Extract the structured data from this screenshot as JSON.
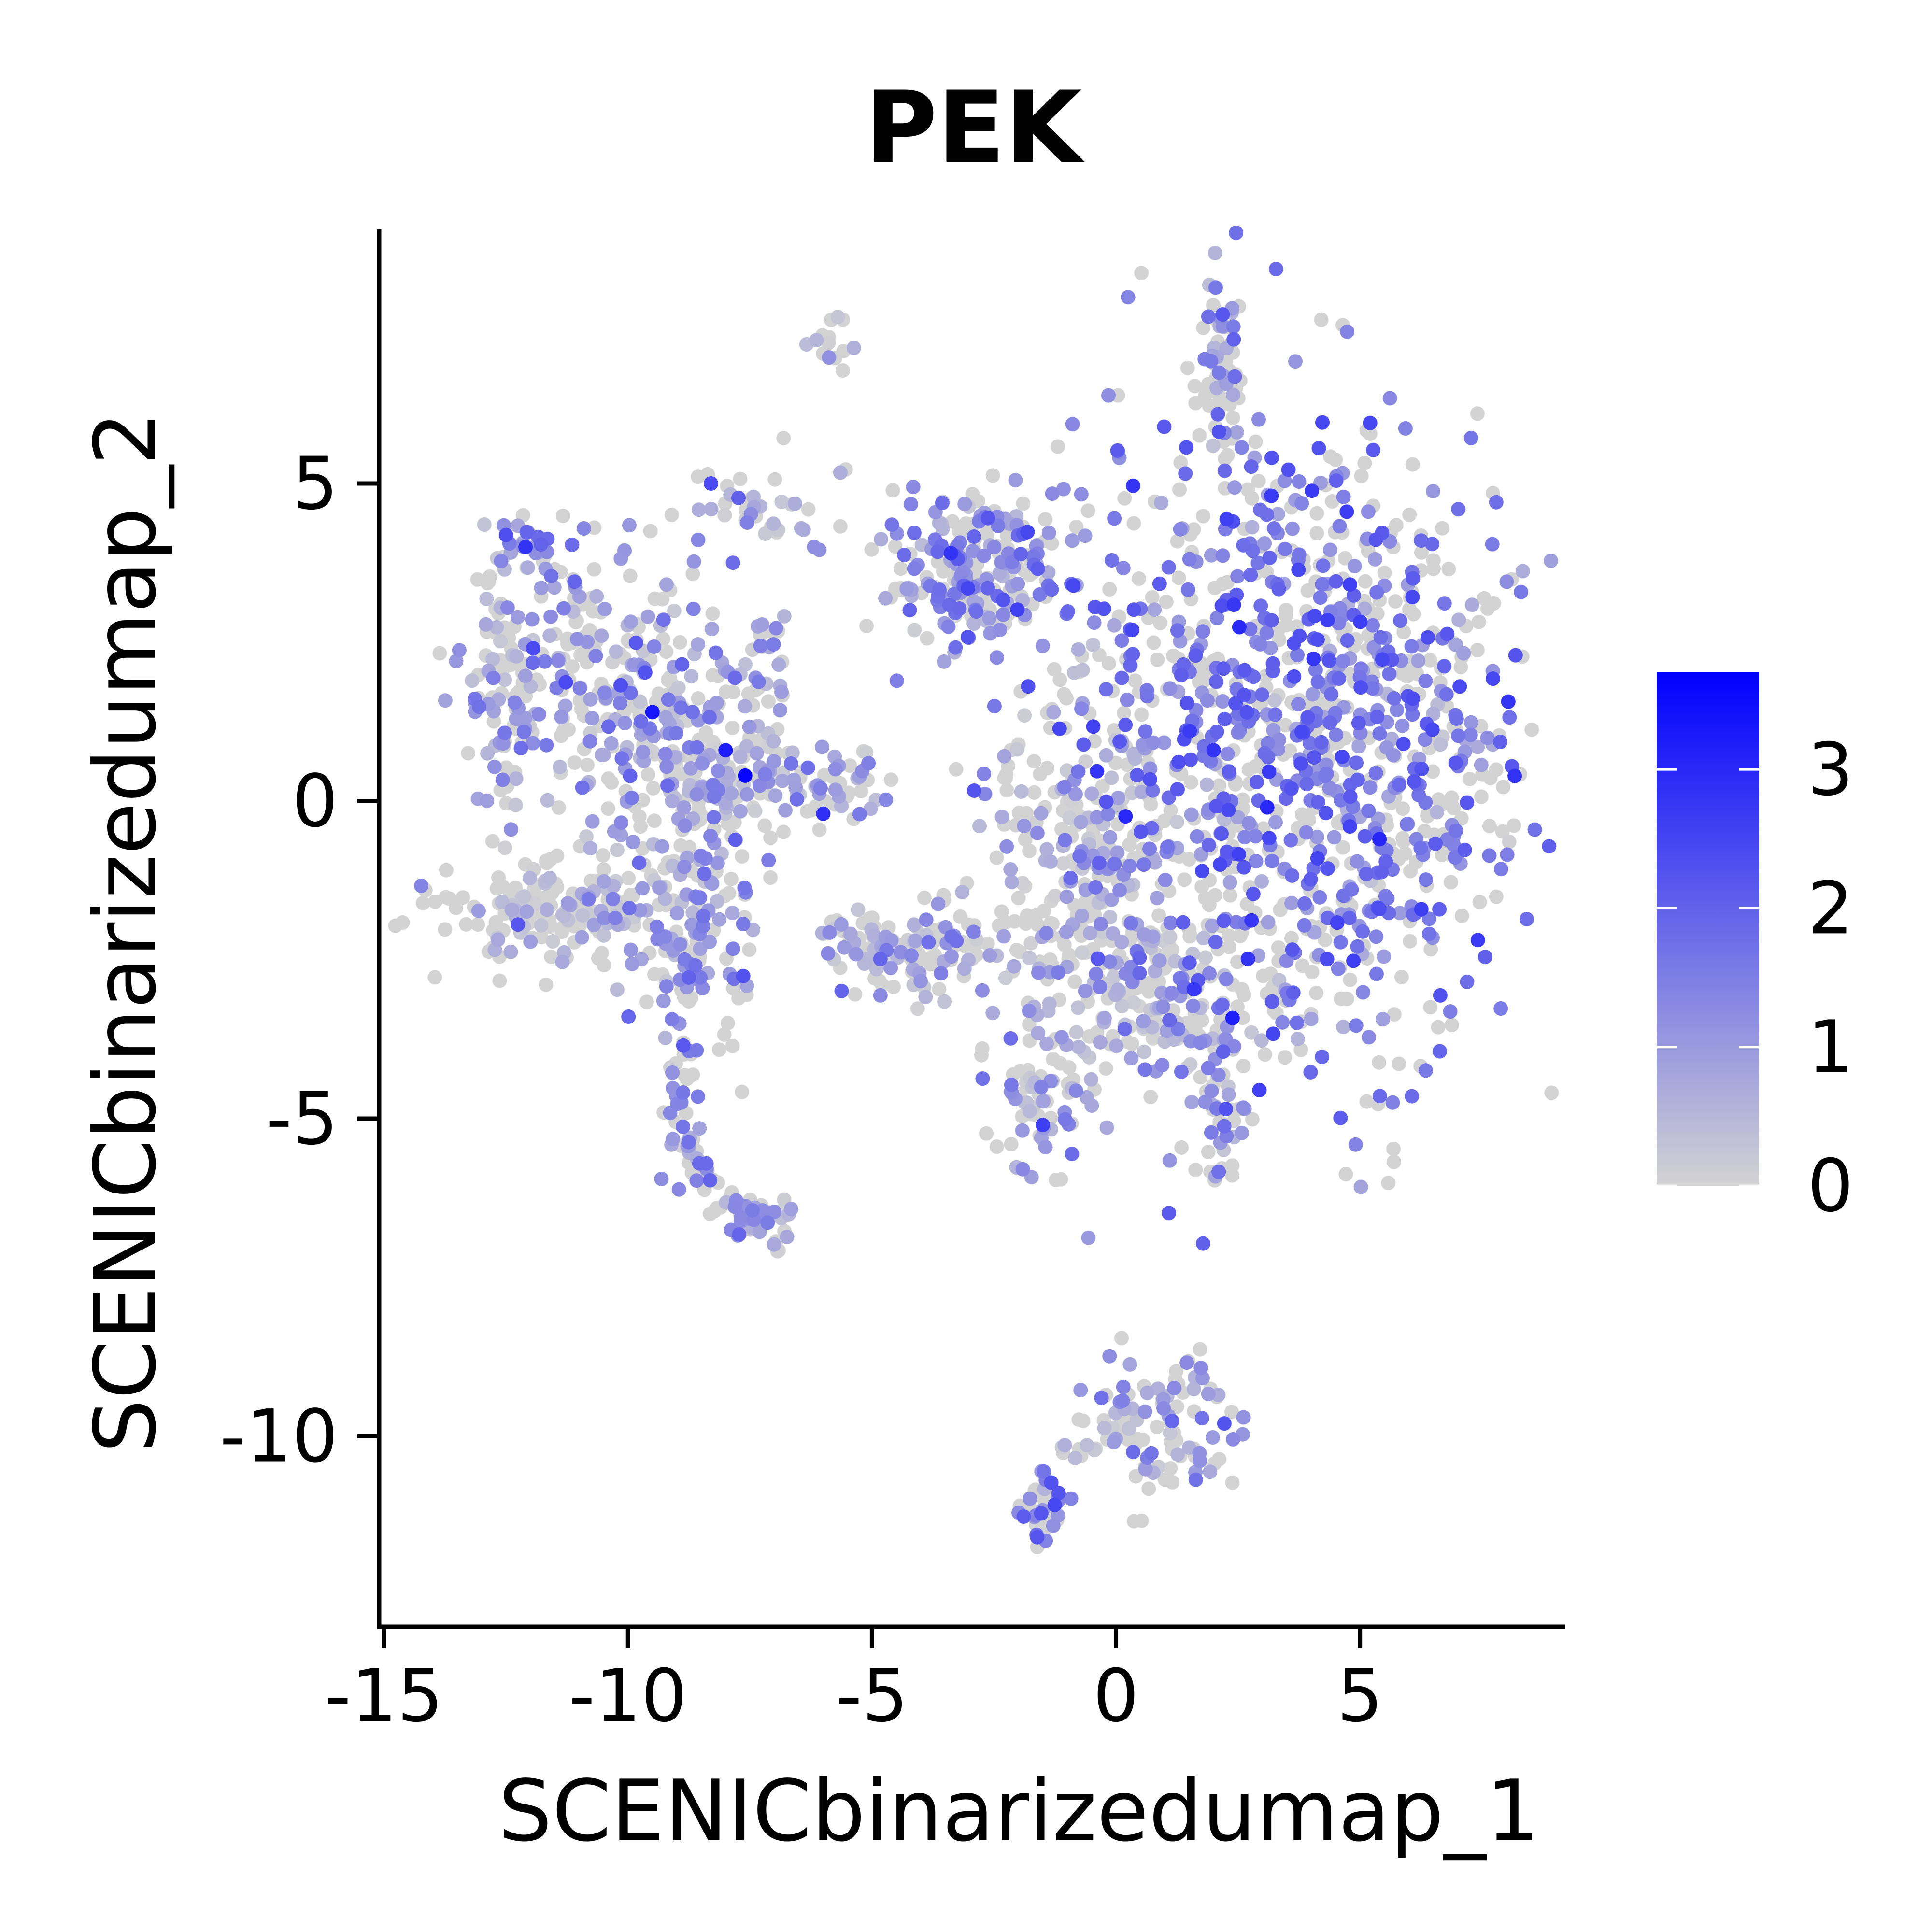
{
  "chart_data": {
    "type": "scatter",
    "title": "PEK",
    "xlabel": "SCENICbinarizedumap_1",
    "ylabel": "SCENICbinarizedumap_2",
    "xlim": [
      -15.1,
      9.2
    ],
    "ylim": [
      -13.0,
      9.0
    ],
    "x_ticks": [
      {
        "value": -15,
        "label": "-15"
      },
      {
        "value": -10,
        "label": "-10"
      },
      {
        "value": -5,
        "label": "-5"
      },
      {
        "value": 0,
        "label": "0"
      },
      {
        "value": 5,
        "label": "5"
      }
    ],
    "y_ticks": [
      {
        "value": -10,
        "label": "-10"
      },
      {
        "value": -5,
        "label": "-5"
      },
      {
        "value": 0,
        "label": "0"
      },
      {
        "value": 5,
        "label": "5"
      }
    ],
    "grid": false,
    "legend": {
      "placement": "right",
      "min": 0,
      "max": 3.7,
      "breaks": [
        {
          "value": 0,
          "label": "0"
        },
        {
          "value": 1,
          "label": "1"
        },
        {
          "value": 2,
          "label": "2"
        },
        {
          "value": 3,
          "label": "3"
        }
      ]
    },
    "colors": {
      "low": "#d3d3d3",
      "high": "#0000ff"
    },
    "clusters": [
      {
        "x": 3.2,
        "y": 0.8,
        "sx": 2.2,
        "sy": 2.6,
        "n": 900,
        "mean": 1.6
      },
      {
        "x": 5.8,
        "y": 0.5,
        "sx": 1.2,
        "sy": 2.2,
        "n": 250,
        "mean": 1.5
      },
      {
        "x": -0.7,
        "y": -1.0,
        "sx": 1.1,
        "sy": 1.5,
        "n": 260,
        "mean": 0.4
      },
      {
        "x": 0.8,
        "y": -3.0,
        "sx": 1.4,
        "sy": 0.7,
        "n": 160,
        "mean": 0.8
      },
      {
        "x": 2.2,
        "y": 6.8,
        "sx": 0.28,
        "sy": 0.75,
        "n": 70,
        "mean": 0.9
      },
      {
        "x": -2.9,
        "y": 3.6,
        "sx": 1.0,
        "sy": 0.6,
        "n": 240,
        "mean": 1.3
      },
      {
        "x": -3.8,
        "y": -2.4,
        "sx": 0.9,
        "sy": 0.4,
        "n": 90,
        "mean": 0.8
      },
      {
        "x": -1.6,
        "y": -4.8,
        "sx": 0.5,
        "sy": 0.55,
        "n": 60,
        "mean": 0.9
      },
      {
        "x": 2.2,
        "y": -4.9,
        "sx": 0.25,
        "sy": 0.9,
        "n": 45,
        "mean": 1.1
      },
      {
        "x": 1.1,
        "y": -9.8,
        "sx": 0.7,
        "sy": 0.55,
        "n": 90,
        "mean": 1.0
      },
      {
        "x": -1.5,
        "y": -11.1,
        "sx": 0.25,
        "sy": 0.3,
        "n": 40,
        "mean": 1.6
      },
      {
        "x": -10.3,
        "y": 2.0,
        "sx": 1.4,
        "sy": 0.9,
        "n": 220,
        "mean": 1.0
      },
      {
        "x": -9.0,
        "y": 0.3,
        "sx": 1.0,
        "sy": 0.8,
        "n": 130,
        "mean": 0.9
      },
      {
        "x": -7.2,
        "y": 0.3,
        "sx": 1.4,
        "sy": 0.35,
        "n": 110,
        "mean": 0.8
      },
      {
        "x": -12.5,
        "y": 1.8,
        "sx": 0.4,
        "sy": 1.1,
        "n": 90,
        "mean": 0.8
      },
      {
        "x": -11.6,
        "y": -1.7,
        "sx": 1.2,
        "sy": 0.4,
        "n": 180,
        "mean": 0.4
      },
      {
        "x": -8.5,
        "y": -2.0,
        "sx": 0.7,
        "sy": 0.9,
        "n": 130,
        "mean": 1.2
      },
      {
        "x": -12.0,
        "y": 4.0,
        "sx": 0.3,
        "sy": 0.3,
        "n": 25,
        "mean": 1.4
      },
      {
        "x": -7.3,
        "y": 4.6,
        "sx": 0.7,
        "sy": 0.5,
        "n": 40,
        "mean": 0.6
      },
      {
        "x": -7.2,
        "y": 2.2,
        "sx": 0.3,
        "sy": 0.6,
        "n": 30,
        "mean": 0.6
      },
      {
        "x": -5.8,
        "y": 7.1,
        "sx": 0.3,
        "sy": 0.3,
        "n": 15,
        "mean": 0.3
      },
      {
        "x": -7.2,
        "y": -6.6,
        "sx": 0.4,
        "sy": 0.2,
        "n": 35,
        "mean": 0.9
      }
    ],
    "arcs": [
      {
        "from": [
          -8.7,
          -3.6
        ],
        "via": [
          -9.7,
          -5.8
        ],
        "to": [
          -7.2,
          -6.8
        ],
        "n": 80,
        "spread": 0.18,
        "mean": 1.0
      },
      {
        "from": [
          -6.3,
          -2.0
        ],
        "via": [
          -5.0,
          -2.3
        ],
        "to": [
          -3.6,
          -2.3
        ],
        "n": 45,
        "spread": 0.15,
        "mean": 0.4
      },
      {
        "from": [
          -1.0,
          -10.3
        ],
        "via": [
          0.0,
          -9.7
        ],
        "to": [
          0.6,
          -9.6
        ],
        "n": 25,
        "spread": 0.2,
        "mean": 0.3
      }
    ],
    "highlight_points": [
      {
        "x": -7.6,
        "y": 0.4,
        "value": 3.6
      },
      {
        "x": -9.5,
        "y": 1.4,
        "value": 3.3
      },
      {
        "x": -8.0,
        "y": 0.8,
        "value": 3.2
      },
      {
        "x": 3.1,
        "y": -0.1,
        "value": 3.0
      },
      {
        "x": -6.0,
        "y": -0.2,
        "value": 2.9
      },
      {
        "x": -12.1,
        "y": 4.0,
        "value": 2.8
      },
      {
        "x": 2.0,
        "y": 0.8,
        "value": 2.8
      },
      {
        "x": -1.5,
        "y": -5.1,
        "value": 2.6
      },
      {
        "x": -8.3,
        "y": 5.0,
        "value": 2.4
      },
      {
        "x": 2.4,
        "y": 4.4,
        "value": 2.3
      }
    ]
  }
}
